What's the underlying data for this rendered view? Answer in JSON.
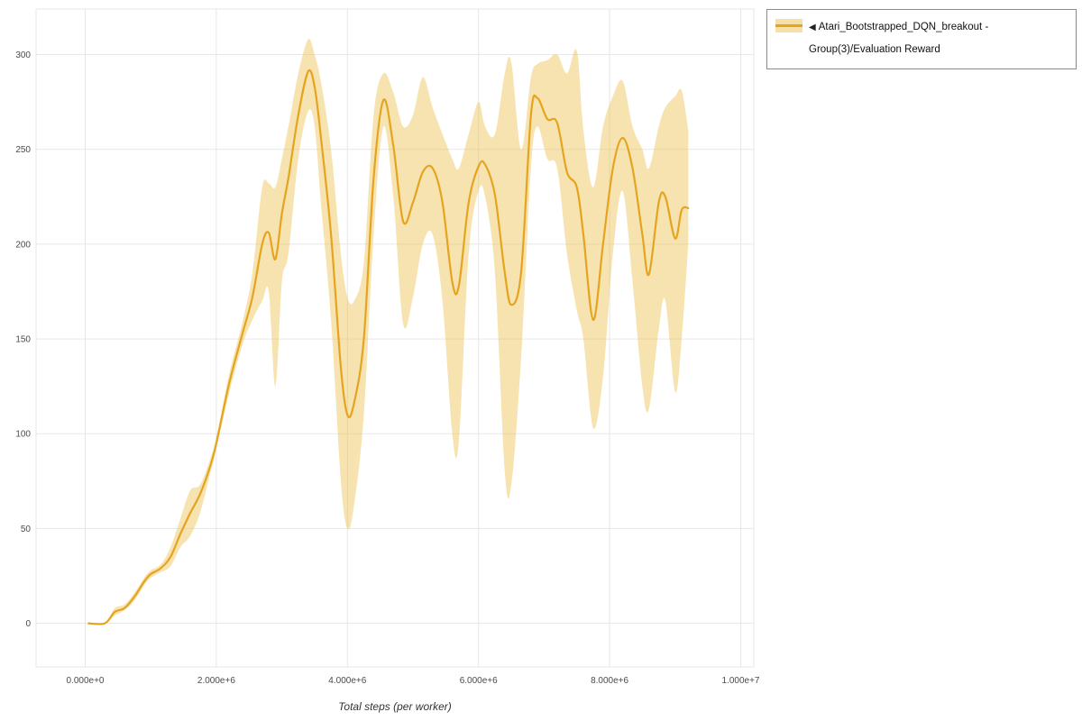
{
  "legend": {
    "toggle_icon": "◀",
    "label": "Atari_Bootstrapped_DQN_breakout - Group(3)/Evaluation Reward"
  },
  "chart_data": {
    "type": "line",
    "title": "",
    "xlabel": "Total steps (per worker)",
    "ylabel": "",
    "grid": true,
    "legend_position": "top-right-outside",
    "xlim": [
      -750000,
      10200000
    ],
    "ylim": [
      -23,
      324
    ],
    "x_tick_values": [
      0,
      2000000,
      4000000,
      6000000,
      8000000,
      10000000
    ],
    "x_tick_labels": [
      "0.000e+0",
      "2.000e+6",
      "4.000e+6",
      "6.000e+6",
      "8.000e+6",
      "1.000e+7"
    ],
    "y_ticks": [
      0,
      50,
      100,
      150,
      200,
      250,
      300
    ],
    "colors": {
      "grid": "#e7e7e7",
      "tick_text": "#4a4a4a",
      "axis_title": "#333333"
    },
    "series": [
      {
        "name": "Atari_Bootstrapped_DQN_breakout - Group(3)/Evaluation Reward",
        "color": "#e5a41f",
        "band_color": "#eec24f",
        "band_opacity": 0.45,
        "x": [
          50000,
          300000,
          450000,
          600000,
          750000,
          900000,
          1000000,
          1150000,
          1300000,
          1450000,
          1600000,
          1750000,
          1900000,
          2000000,
          2200000,
          2400000,
          2550000,
          2700000,
          2800000,
          2900000,
          3000000,
          3100000,
          3250000,
          3400000,
          3500000,
          3600000,
          3750000,
          3900000,
          4000000,
          4100000,
          4250000,
          4400000,
          4550000,
          4700000,
          4850000,
          5000000,
          5150000,
          5300000,
          5450000,
          5600000,
          5700000,
          5850000,
          6000000,
          6100000,
          6250000,
          6400000,
          6500000,
          6650000,
          6800000,
          6900000,
          7050000,
          7200000,
          7350000,
          7500000,
          7600000,
          7750000,
          7900000,
          8050000,
          8200000,
          8350000,
          8500000,
          8600000,
          8750000,
          8850000,
          9000000,
          9100000,
          9200000
        ],
        "mean": [
          0,
          0,
          6,
          8,
          14,
          22,
          26,
          29,
          35,
          47,
          58,
          68,
          82,
          95,
          127,
          153,
          172,
          200,
          206,
          192,
          216,
          235,
          268,
          291,
          283,
          255,
          205,
          135,
          110,
          116,
          150,
          235,
          276,
          252,
          212,
          222,
          238,
          240,
          222,
          180,
          178,
          222,
          241,
          242,
          226,
          185,
          168,
          185,
          268,
          277,
          266,
          264,
          238,
          230,
          205,
          160,
          200,
          240,
          256,
          240,
          205,
          184,
          222,
          225,
          203,
          218,
          219
        ],
        "lo": [
          0,
          0,
          4,
          7,
          12,
          20,
          24,
          27,
          30,
          40,
          46,
          58,
          78,
          92,
          122,
          147,
          160,
          170,
          175,
          125,
          180,
          195,
          245,
          270,
          262,
          220,
          160,
          75,
          50,
          62,
          110,
          205,
          262,
          225,
          158,
          172,
          200,
          205,
          170,
          100,
          96,
          195,
          228,
          225,
          185,
          80,
          73,
          140,
          240,
          262,
          245,
          240,
          195,
          165,
          150,
          103,
          130,
          195,
          228,
          180,
          125,
          113,
          155,
          170,
          122,
          150,
          200
        ],
        "hi": [
          0,
          0,
          8,
          10,
          16,
          24,
          28,
          31,
          40,
          55,
          70,
          73,
          86,
          98,
          132,
          159,
          185,
          230,
          232,
          230,
          245,
          262,
          290,
          308,
          300,
          285,
          250,
          195,
          172,
          170,
          190,
          268,
          290,
          280,
          262,
          268,
          288,
          272,
          258,
          245,
          240,
          258,
          275,
          262,
          258,
          290,
          296,
          250,
          288,
          295,
          297,
          300,
          290,
          302,
          260,
          230,
          262,
          278,
          286,
          262,
          250,
          240,
          262,
          272,
          278,
          281,
          260
        ]
      }
    ]
  }
}
